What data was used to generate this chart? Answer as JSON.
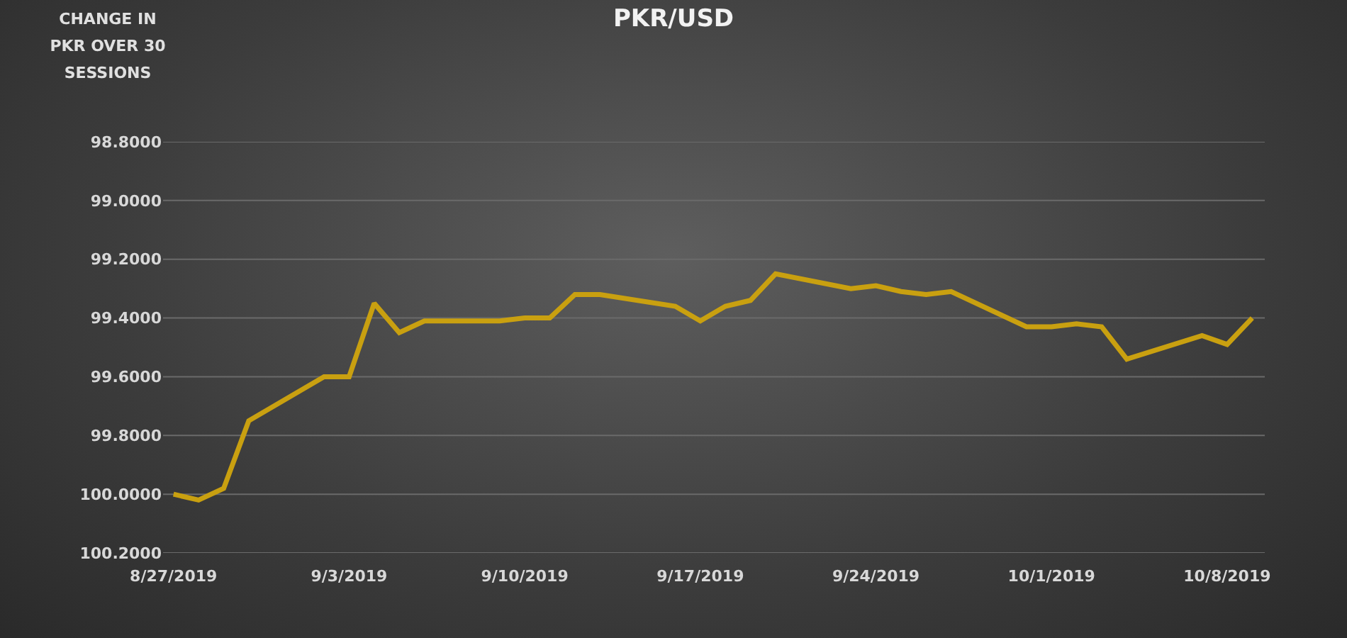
{
  "chart_data": {
    "type": "line",
    "title": "PKR/USD",
    "ylabel": "CHANGE IN PKR OVER 30 SESSIONS",
    "x": [
      "2019-08-27",
      "2019-08-28",
      "2019-08-29",
      "2019-08-30",
      "2019-09-02",
      "2019-09-03",
      "2019-09-04",
      "2019-09-05",
      "2019-09-06",
      "2019-09-09",
      "2019-09-10",
      "2019-09-11",
      "2019-09-12",
      "2019-09-13",
      "2019-09-16",
      "2019-09-17",
      "2019-09-18",
      "2019-09-19",
      "2019-09-20",
      "2019-09-23",
      "2019-09-24",
      "2019-09-25",
      "2019-09-26",
      "2019-09-27",
      "2019-09-30",
      "2019-10-01",
      "2019-10-02",
      "2019-10-03",
      "2019-10-04",
      "2019-10-07",
      "2019-10-08",
      "2019-10-09"
    ],
    "series": [
      {
        "color": "#c9a010",
        "values": [
          100.0,
          100.02,
          99.98,
          99.75,
          99.6,
          99.6,
          99.35,
          99.45,
          99.41,
          99.41,
          99.4,
          99.4,
          99.32,
          99.32,
          99.36,
          99.41,
          99.36,
          99.34,
          99.25,
          99.3,
          99.29,
          99.31,
          99.32,
          99.31,
          99.43,
          99.43,
          99.42,
          99.43,
          99.54,
          99.46,
          99.49,
          99.4
        ]
      }
    ],
    "xlim": [
      "2019-08-26T14:00",
      "2019-10-09T12:00"
    ],
    "xticks": [
      {
        "value": "2019-08-27",
        "label": "8/27/2019"
      },
      {
        "value": "2019-09-03",
        "label": "9/3/2019"
      },
      {
        "value": "2019-09-10",
        "label": "9/10/2019"
      },
      {
        "value": "2019-09-17",
        "label": "9/17/2019"
      },
      {
        "value": "2019-09-24",
        "label": "9/24/2019"
      },
      {
        "value": "2019-10-01",
        "label": "10/1/2019"
      },
      {
        "value": "2019-10-08",
        "label": "10/8/2019"
      }
    ],
    "ylim": [
      100.2,
      98.8
    ],
    "yticks": [
      {
        "value": 98.8,
        "label": "98.8000"
      },
      {
        "value": 99.0,
        "label": "99.0000"
      },
      {
        "value": 99.2,
        "label": "99.2000"
      },
      {
        "value": 99.4,
        "label": "99.4000"
      },
      {
        "value": 99.6,
        "label": "99.6000"
      },
      {
        "value": 99.8,
        "label": "99.8000"
      },
      {
        "value": 100.0,
        "label": "100.0000"
      },
      {
        "value": 100.2,
        "label": "100.2000"
      }
    ],
    "grid": "y",
    "marker": "none",
    "line_style": "solid"
  }
}
